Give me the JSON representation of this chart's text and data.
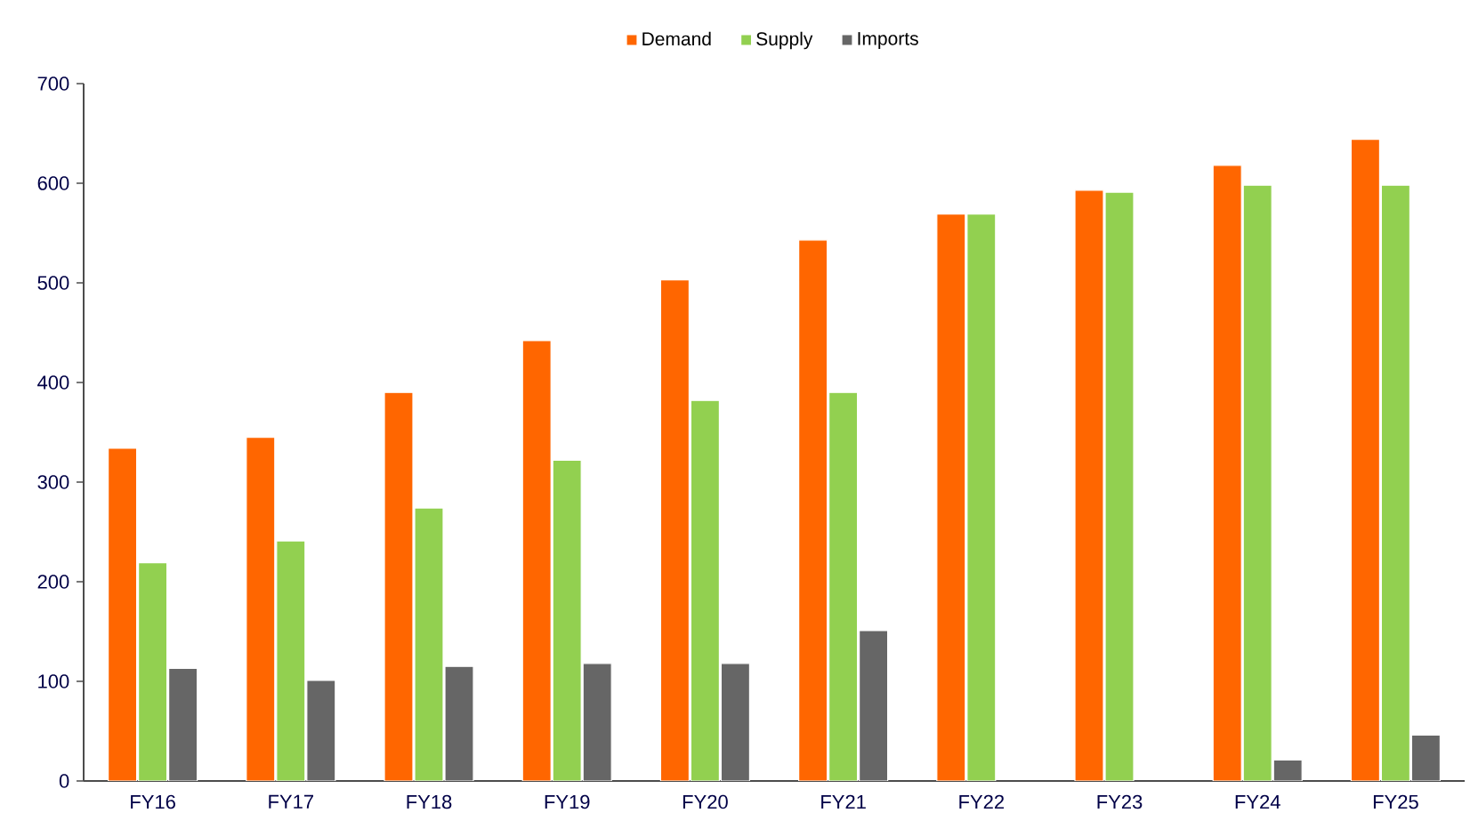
{
  "chart_data": {
    "type": "bar",
    "categories": [
      "FY16",
      "FY17",
      "FY18",
      "FY19",
      "FY20",
      "FY21",
      "FY22",
      "FY23",
      "FY24",
      "FY25"
    ],
    "series": [
      {
        "name": "Demand",
        "color": "#ff6600",
        "values": [
          334,
          345,
          390,
          442,
          503,
          543,
          569,
          593,
          618,
          644
        ]
      },
      {
        "name": "Supply",
        "color": "#92d050",
        "values": [
          219,
          241,
          274,
          322,
          382,
          390,
          569,
          591,
          598,
          598
        ]
      },
      {
        "name": "Imports",
        "color": "#666666",
        "values": [
          113,
          101,
          115,
          118,
          118,
          151,
          null,
          null,
          21,
          46
        ]
      }
    ],
    "ylim": [
      0,
      700
    ],
    "yticks": [
      0,
      100,
      200,
      300,
      400,
      500,
      600,
      700
    ],
    "grid": false,
    "legend": "top"
  }
}
